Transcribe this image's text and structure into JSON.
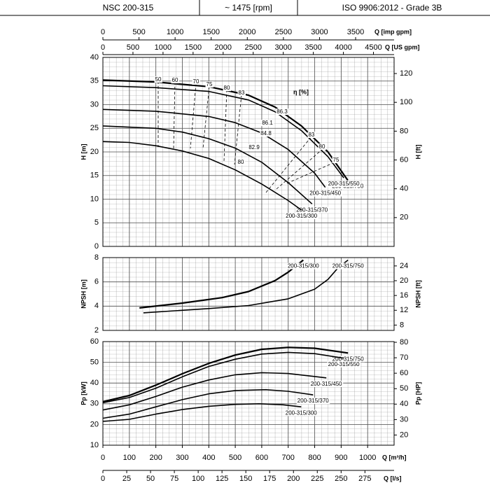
{
  "header": {
    "model": "NSC 200-315",
    "speed": "~ 1475 [rpm]",
    "standard": "ISO 9906:2012 - Grade 3B"
  },
  "q_axes": [
    {
      "label": "Q [imp gpm]",
      "xlim": [
        0,
        4033
      ],
      "xticks": [
        0,
        500,
        1000,
        1500,
        2000,
        2500,
        3000,
        3500
      ]
    },
    {
      "label": "Q [US gpm]",
      "xlim": [
        0,
        4843
      ],
      "xticks": [
        0,
        500,
        1000,
        1500,
        2000,
        2500,
        3000,
        3500,
        4000,
        4500
      ]
    },
    {
      "label": "Q [m³/h]",
      "xlim": [
        0,
        1100
      ],
      "xticks": [
        0,
        100,
        200,
        300,
        400,
        500,
        600,
        700,
        800,
        900,
        1000
      ]
    },
    {
      "label": "Q [l/s]",
      "xlim": [
        0,
        305.6
      ],
      "xticks": [
        0,
        25,
        50,
        75,
        100,
        125,
        150,
        175,
        200,
        225,
        250,
        275
      ]
    }
  ],
  "chart_data": [
    {
      "type": "line",
      "ylabel": "H [m]",
      "y2label": "H [ft]",
      "xlim": [
        0,
        1100
      ],
      "ylim": [
        0,
        40
      ],
      "yticks": [
        0,
        5,
        10,
        15,
        20,
        25,
        30,
        35,
        40
      ],
      "y2lim": [
        0,
        131.2
      ],
      "y2ticks": [
        20,
        40,
        60,
        80,
        100,
        120
      ],
      "efficiency_title": "η [%]",
      "efficiency_labels": [
        "50",
        "60",
        "70",
        "75",
        "80",
        "83",
        "86.3",
        "86.1",
        "84.8",
        "82.9",
        "80",
        "83",
        "80",
        "75"
      ],
      "series": [
        {
          "name": "200-315/750",
          "color": "#000000",
          "x": [
            0,
            200,
            400,
            550,
            650,
            750,
            850,
            925
          ],
          "values": [
            35.2,
            34.8,
            33.8,
            32,
            29.5,
            25.5,
            20,
            14
          ]
        },
        {
          "name": "200-315/550",
          "color": "#000000",
          "x": [
            0,
            200,
            400,
            550,
            650,
            750,
            850,
            910
          ],
          "values": [
            34,
            33.6,
            32.8,
            31,
            28.5,
            24.5,
            19,
            14.5
          ]
        },
        {
          "name": "200-315/450",
          "color": "#000000",
          "x": [
            0,
            200,
            400,
            500,
            600,
            700,
            800,
            840
          ],
          "values": [
            29,
            28.6,
            27.5,
            26.2,
            24,
            20.5,
            15.5,
            12.5
          ]
        },
        {
          "name": "200-315/370",
          "color": "#000000",
          "x": [
            0,
            200,
            300,
            400,
            500,
            600,
            700,
            790
          ],
          "values": [
            25.5,
            25,
            24.2,
            22.8,
            20.8,
            17.8,
            13.5,
            9
          ]
        },
        {
          "name": "200-315/300",
          "color": "#000000",
          "x": [
            0,
            100,
            200,
            300,
            400,
            500,
            600,
            700,
            750
          ],
          "values": [
            22.2,
            22,
            21.3,
            20.2,
            18.6,
            16.2,
            13.2,
            9.7,
            7.7
          ]
        }
      ]
    },
    {
      "type": "line",
      "ylabel": "NPSH [m]",
      "y2label": "NPSH [ft]",
      "xlim": [
        0,
        1100
      ],
      "ylim": [
        2,
        8
      ],
      "yticks": [
        2,
        4,
        6,
        8
      ],
      "y2lim": [
        6.56,
        26.25
      ],
      "y2ticks": [
        8,
        12,
        16,
        20,
        24
      ],
      "series": [
        {
          "name": "200-315/300",
          "color": "#000000",
          "x": [
            138,
            300,
            450,
            550,
            650,
            700,
            757
          ],
          "values": [
            3.85,
            4.25,
            4.7,
            5.2,
            6.1,
            6.8,
            7.8
          ]
        },
        {
          "name": "200-315/750",
          "color": "#000000",
          "x": [
            153,
            400,
            550,
            700,
            800,
            850,
            890,
            926
          ],
          "values": [
            3.45,
            3.8,
            4.05,
            4.6,
            5.4,
            6.2,
            7.2,
            7.8
          ]
        }
      ]
    },
    {
      "type": "line",
      "ylabel": "Pp [kW]",
      "y2label": "Pp [HP]",
      "xlim": [
        0,
        1100
      ],
      "ylim": [
        10,
        60
      ],
      "yticks": [
        10,
        20,
        30,
        40,
        50,
        60
      ],
      "y2lim": [
        13.41,
        80.46
      ],
      "y2ticks": [
        20,
        30,
        40,
        50,
        60,
        70,
        80
      ],
      "series": [
        {
          "name": "200-315/750",
          "color": "#000000",
          "x": [
            0,
            100,
            200,
            300,
            400,
            500,
            600,
            700,
            800,
            926
          ],
          "values": [
            31,
            34,
            39,
            44.5,
            49.5,
            53.5,
            56.3,
            57.2,
            56.8,
            54.5
          ]
        },
        {
          "name": "200-315/550",
          "color": "#000000",
          "x": [
            0,
            100,
            200,
            300,
            400,
            500,
            600,
            700,
            800,
            910
          ],
          "values": [
            30.5,
            33,
            37.5,
            43,
            48,
            51.5,
            54,
            54.8,
            54.2,
            52
          ]
        },
        {
          "name": "200-315/450",
          "color": "#000000",
          "x": [
            0,
            100,
            200,
            300,
            400,
            500,
            600,
            700,
            844
          ],
          "values": [
            27,
            29.5,
            33.5,
            38,
            41.5,
            44,
            45,
            44.6,
            42.5
          ]
        },
        {
          "name": "200-315/370",
          "color": "#000000",
          "x": [
            0,
            100,
            200,
            300,
            400,
            500,
            616,
            700,
            794
          ],
          "values": [
            23,
            25,
            28.5,
            32,
            34.8,
            36.4,
            36.8,
            36,
            34.3
          ]
        },
        {
          "name": "200-315/300",
          "color": "#000000",
          "x": [
            0,
            100,
            200,
            300,
            400,
            500,
            590,
            680,
            749
          ],
          "values": [
            21.5,
            22.5,
            25,
            27.2,
            28.8,
            29.7,
            30,
            29.5,
            28.5
          ]
        }
      ]
    }
  ]
}
